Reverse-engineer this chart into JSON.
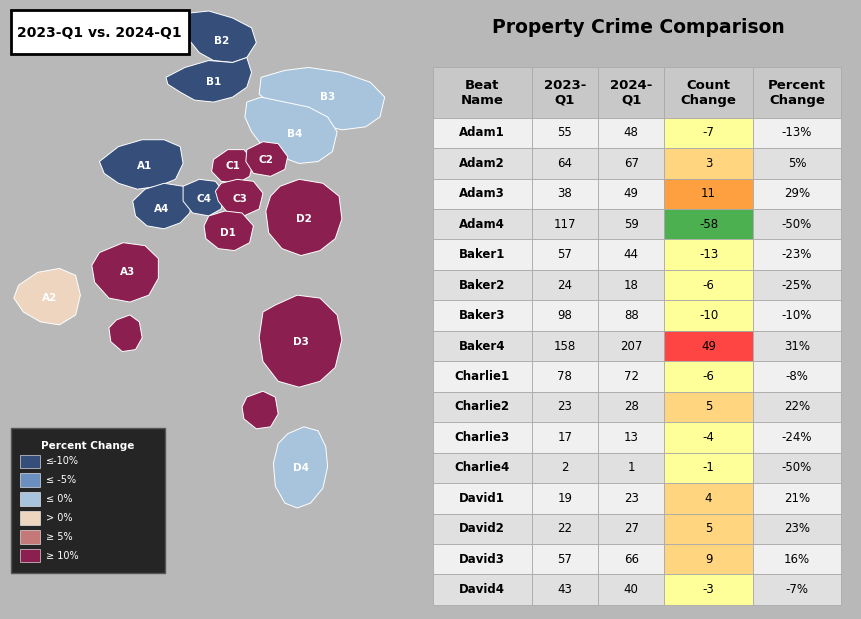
{
  "title": "Property Crime Comparison",
  "map_title": "2023-Q1 vs. 2024-Q1",
  "headers": [
    "Beat\nName",
    "2023-\nQ1",
    "2024-\nQ1",
    "Count\nChange",
    "Percent\nChange"
  ],
  "rows": [
    [
      "Adam1",
      "55",
      "48",
      "-7",
      "-13%"
    ],
    [
      "Adam2",
      "64",
      "67",
      "3",
      "5%"
    ],
    [
      "Adam3",
      "38",
      "49",
      "11",
      "29%"
    ],
    [
      "Adam4",
      "117",
      "59",
      "-58",
      "-50%"
    ],
    [
      "Baker1",
      "57",
      "44",
      "-13",
      "-23%"
    ],
    [
      "Baker2",
      "24",
      "18",
      "-6",
      "-25%"
    ],
    [
      "Baker3",
      "98",
      "88",
      "-10",
      "-10%"
    ],
    [
      "Baker4",
      "158",
      "207",
      "49",
      "31%"
    ],
    [
      "Charlie1",
      "78",
      "72",
      "-6",
      "-8%"
    ],
    [
      "Charlie2",
      "23",
      "28",
      "5",
      "22%"
    ],
    [
      "Charlie3",
      "17",
      "13",
      "-4",
      "-24%"
    ],
    [
      "Charlie4",
      "2",
      "1",
      "-1",
      "-50%"
    ],
    [
      "David1",
      "19",
      "23",
      "4",
      "21%"
    ],
    [
      "David2",
      "22",
      "27",
      "5",
      "23%"
    ],
    [
      "David3",
      "57",
      "66",
      "9",
      "16%"
    ],
    [
      "David4",
      "43",
      "40",
      "-3",
      "-7%"
    ]
  ],
  "count_change_colors": [
    "#FFFF99",
    "#FFD580",
    "#FFA040",
    "#4CAF50",
    "#FFFF99",
    "#FFFF99",
    "#FFFF99",
    "#FF4444",
    "#FFFF99",
    "#FFD580",
    "#FFFF99",
    "#FFFF99",
    "#FFD580",
    "#FFD580",
    "#FFD580",
    "#FFFF99"
  ],
  "legend_items": [
    [
      "≤-10%",
      "#354F7A"
    ],
    [
      "≤ -5%",
      "#6B8FBF"
    ],
    [
      "≤ 0%",
      "#A8C4DC"
    ],
    [
      "> 0%",
      "#EDD5C0"
    ],
    [
      "≥ 5%",
      "#C47878"
    ],
    [
      "≥ 10%",
      "#8B2050"
    ]
  ],
  "map_bg": "#7D7D7D",
  "table_bg": "#C8C8C8",
  "outer_bg": "#B8B8B8"
}
